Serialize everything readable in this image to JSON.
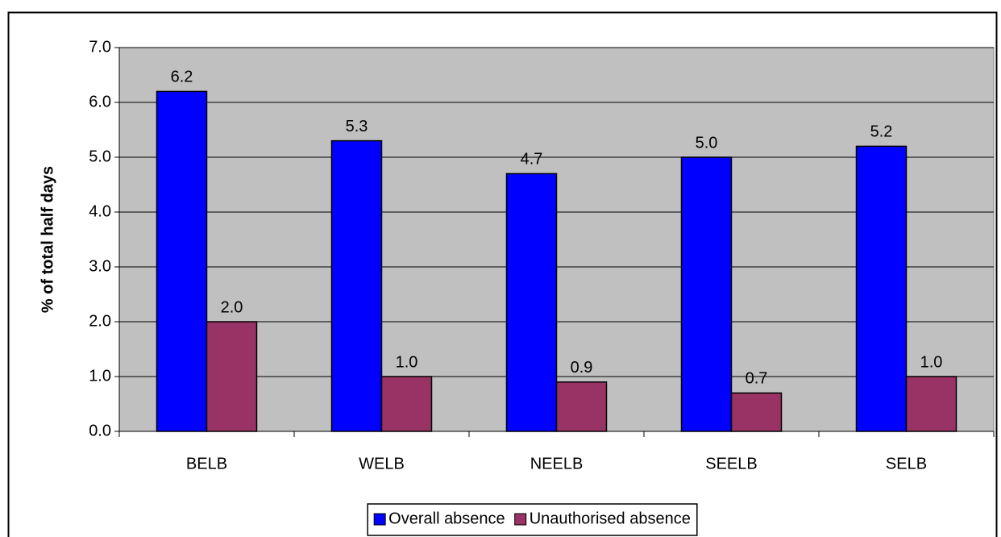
{
  "chart_data": {
    "type": "bar",
    "y_label": "% of total half days",
    "categories": [
      "BELB",
      "WELB",
      "NEELB",
      "SEELB",
      "SELB"
    ],
    "series": [
      {
        "name": "Overall absence",
        "color": "#0000ff",
        "values": [
          6.2,
          5.3,
          4.7,
          5.0,
          5.2
        ],
        "value_labels": [
          "6.2",
          "5.3",
          "4.7",
          "5.0",
          "5.2"
        ]
      },
      {
        "name": "Unauthorised absence",
        "color": "#993366",
        "values": [
          2.0,
          1.0,
          0.9,
          0.7,
          1.0
        ],
        "value_labels": [
          "2.0",
          "1.0",
          "0.9",
          "0.7",
          "1.0"
        ]
      }
    ],
    "ylim": [
      0,
      7
    ],
    "yticks": [
      {
        "value": 0,
        "label": "0.0"
      },
      {
        "value": 1,
        "label": "1.0"
      },
      {
        "value": 2,
        "label": "2.0"
      },
      {
        "value": 3,
        "label": "3.0"
      },
      {
        "value": 4,
        "label": "4.0"
      },
      {
        "value": 5,
        "label": "5.0"
      },
      {
        "value": 6,
        "label": "6.0"
      },
      {
        "value": 7,
        "label": "7.0"
      }
    ],
    "grid": true,
    "plot_background": "#c0c0c0",
    "legend": "bottom"
  }
}
